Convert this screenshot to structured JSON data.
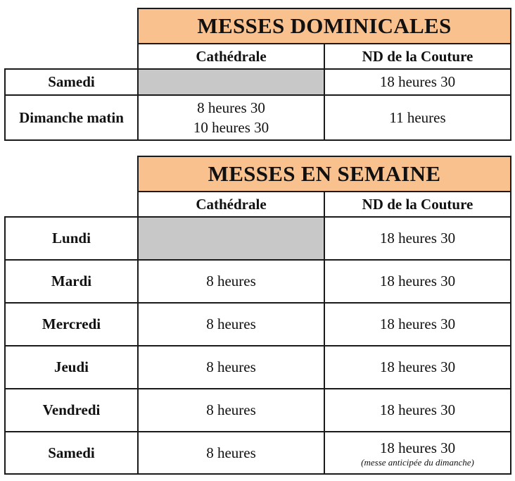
{
  "dominicales": {
    "title": "MESSES DOMINICALES",
    "col1": "Cathédrale",
    "col2": "ND de la Couture",
    "rows": [
      {
        "label": "Samedi",
        "cathedrale": "",
        "couture": "18 heures 30"
      },
      {
        "label": "Dimanche matin",
        "cathedrale_lines": [
          "8 heures 30",
          "10 heures 30"
        ],
        "couture": "11 heures"
      }
    ]
  },
  "semaine": {
    "title": "MESSES EN SEMAINE",
    "col1": "Cathédrale",
    "col2": "ND de la Couture",
    "rows": [
      {
        "label": "Lundi",
        "cathedrale": "",
        "couture": "18 heures 30"
      },
      {
        "label": "Mardi",
        "cathedrale": "8 heures",
        "couture": "18 heures 30"
      },
      {
        "label": "Mercredi",
        "cathedrale": "8 heures",
        "couture": "18 heures 30"
      },
      {
        "label": "Jeudi",
        "cathedrale": "8 heures",
        "couture": "18 heures 30"
      },
      {
        "label": "Vendredi",
        "cathedrale": "8 heures",
        "couture": "18 heures 30"
      },
      {
        "label": "Samedi",
        "cathedrale": "8 heures",
        "couture": "18 heures 30",
        "note": "(messe anticipée du dimanche)"
      }
    ]
  },
  "colors": {
    "title_bg": "#f9c18e",
    "empty_cell": "#c8c8c8",
    "border": "#1a1a1a"
  }
}
